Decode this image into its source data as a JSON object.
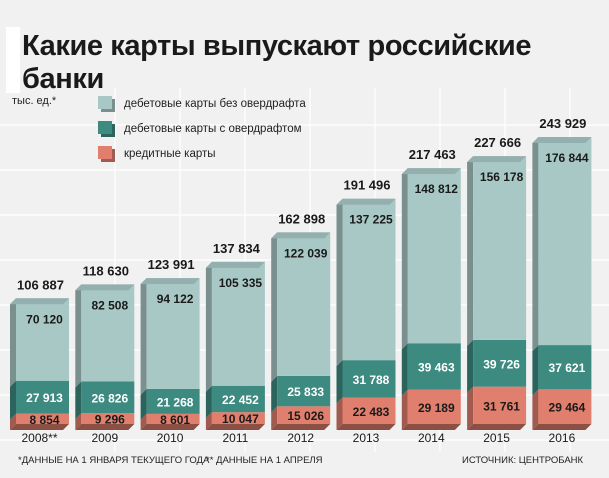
{
  "title": "Какие карты выпускают российские банки",
  "unit_label": "тыс. ед.*",
  "footnote_1": "*ДАННЫЕ НА 1 ЯНВАРЯ ТЕКУЩЕГО ГОДА",
  "footnote_2": "** ДАННЫЕ НА 1 АПРЕЛЯ",
  "source": "ИСТОЧНИК: ЦЕНТРОБАНК",
  "colors": {
    "debit_no_overdraft": "#a8c8c6",
    "debit_overdraft": "#3d8a80",
    "credit": "#e07f6d"
  },
  "chart_data": {
    "type": "bar",
    "stacked": true,
    "categories": [
      "2008**",
      "2009",
      "2010",
      "2011",
      "2012",
      "2013",
      "2014",
      "2015",
      "2016"
    ],
    "series": [
      {
        "name": "кредитные карты",
        "values": [
          8854,
          9296,
          8601,
          10047,
          15026,
          22483,
          29189,
          31761,
          29464
        ],
        "labels": [
          "8 854",
          "9 296",
          "8 601",
          "10 047",
          "15 026",
          "22 483",
          "29 189",
          "31 761",
          "29 464"
        ]
      },
      {
        "name": "дебетовые карты с овердрафтом",
        "values": [
          27913,
          26826,
          21268,
          22452,
          25833,
          31788,
          39463,
          39726,
          37621
        ],
        "labels": [
          "27 913",
          "26 826",
          "21 268",
          "22 452",
          "25 833",
          "31 788",
          "39 463",
          "39 726",
          "37 621"
        ]
      },
      {
        "name": "дебетовые карты без овердрафта",
        "values": [
          70120,
          82508,
          94122,
          105335,
          122039,
          137225,
          148812,
          156178,
          176844
        ],
        "labels": [
          "70 120",
          "82 508",
          "94 122",
          "105 335",
          "122 039",
          "137 225",
          "148 812",
          "156 178",
          "176 844"
        ]
      }
    ],
    "totals": [
      106887,
      118630,
      123991,
      137834,
      162898,
      191496,
      217463,
      227666,
      243929
    ],
    "total_labels": [
      "106 887",
      "118 630",
      "123 991",
      "137 834",
      "162 898",
      "191 496",
      "217 463",
      "227 666",
      "243 929"
    ],
    "legend": [
      "дебетовые карты без овердрафта",
      "дебетовые карты с овердрафтом",
      "кредитные карты"
    ],
    "ylim": [
      0,
      250000
    ],
    "grid": true
  }
}
